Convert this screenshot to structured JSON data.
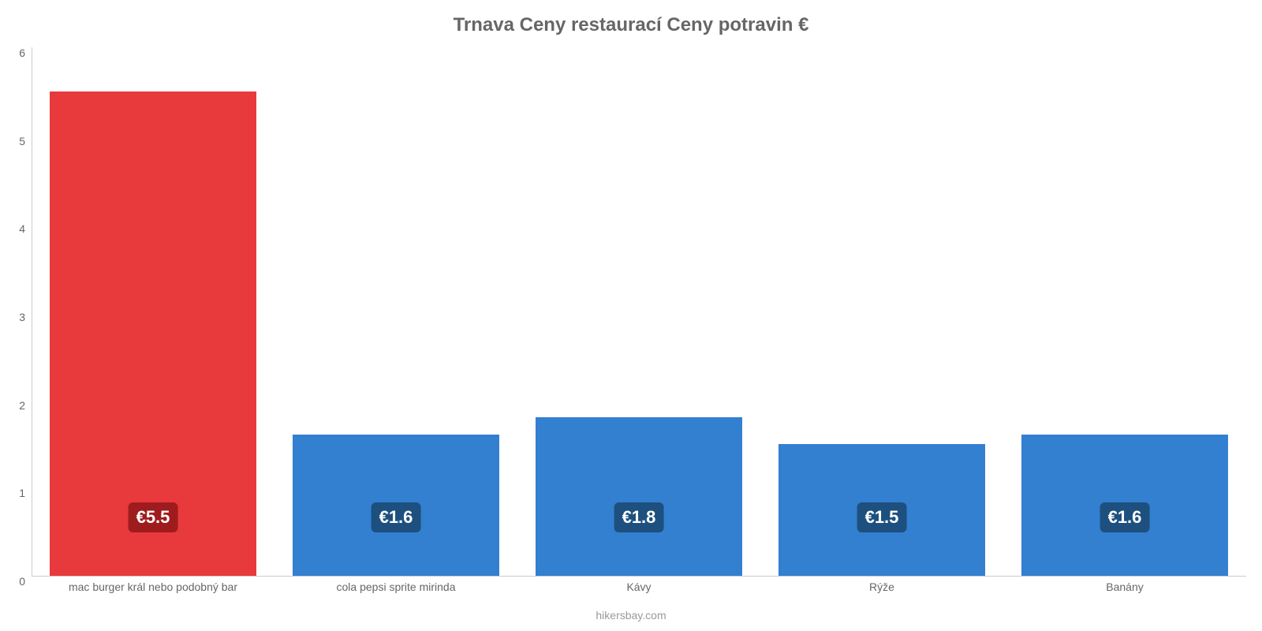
{
  "chart": {
    "type": "bar",
    "title": "Trnava Ceny restaurací Ceny potravin €",
    "title_fontsize": 24,
    "title_color": "#666666",
    "title_weight": "bold",
    "attribution": "hikersbay.com",
    "attribution_fontsize": 14,
    "attribution_color": "#999999",
    "background_color": "#ffffff",
    "axis_line_color": "#cccccc",
    "categories": [
      "mac burger král nebo podobný bar",
      "cola pepsi sprite mirinda",
      "Kávy",
      "Rýže",
      "Banány"
    ],
    "values": [
      5.5,
      1.6,
      1.8,
      1.5,
      1.6
    ],
    "value_labels": [
      "€5.5",
      "€1.6",
      "€1.8",
      "€1.5",
      "€1.6"
    ],
    "bar_colors": [
      "#e8393c",
      "#337fd0",
      "#337fd0",
      "#337fd0",
      "#337fd0"
    ],
    "label_bg_colors": [
      "#9e1c1d",
      "#1d507e",
      "#1d507e",
      "#1d507e",
      "#1d507e"
    ],
    "label_text_color": "#ffffff",
    "label_fontsize": 22,
    "ymin": 0,
    "ymax": 6,
    "ytick_step": 1,
    "yticks": [
      "0",
      "1",
      "2",
      "3",
      "4",
      "5",
      "6"
    ],
    "ytick_fontsize": 14,
    "ytick_color": "#666666",
    "xtick_fontsize": 14,
    "xtick_color": "#666666",
    "bar_width_ratio": 0.85,
    "label_y_position": 1.0
  }
}
